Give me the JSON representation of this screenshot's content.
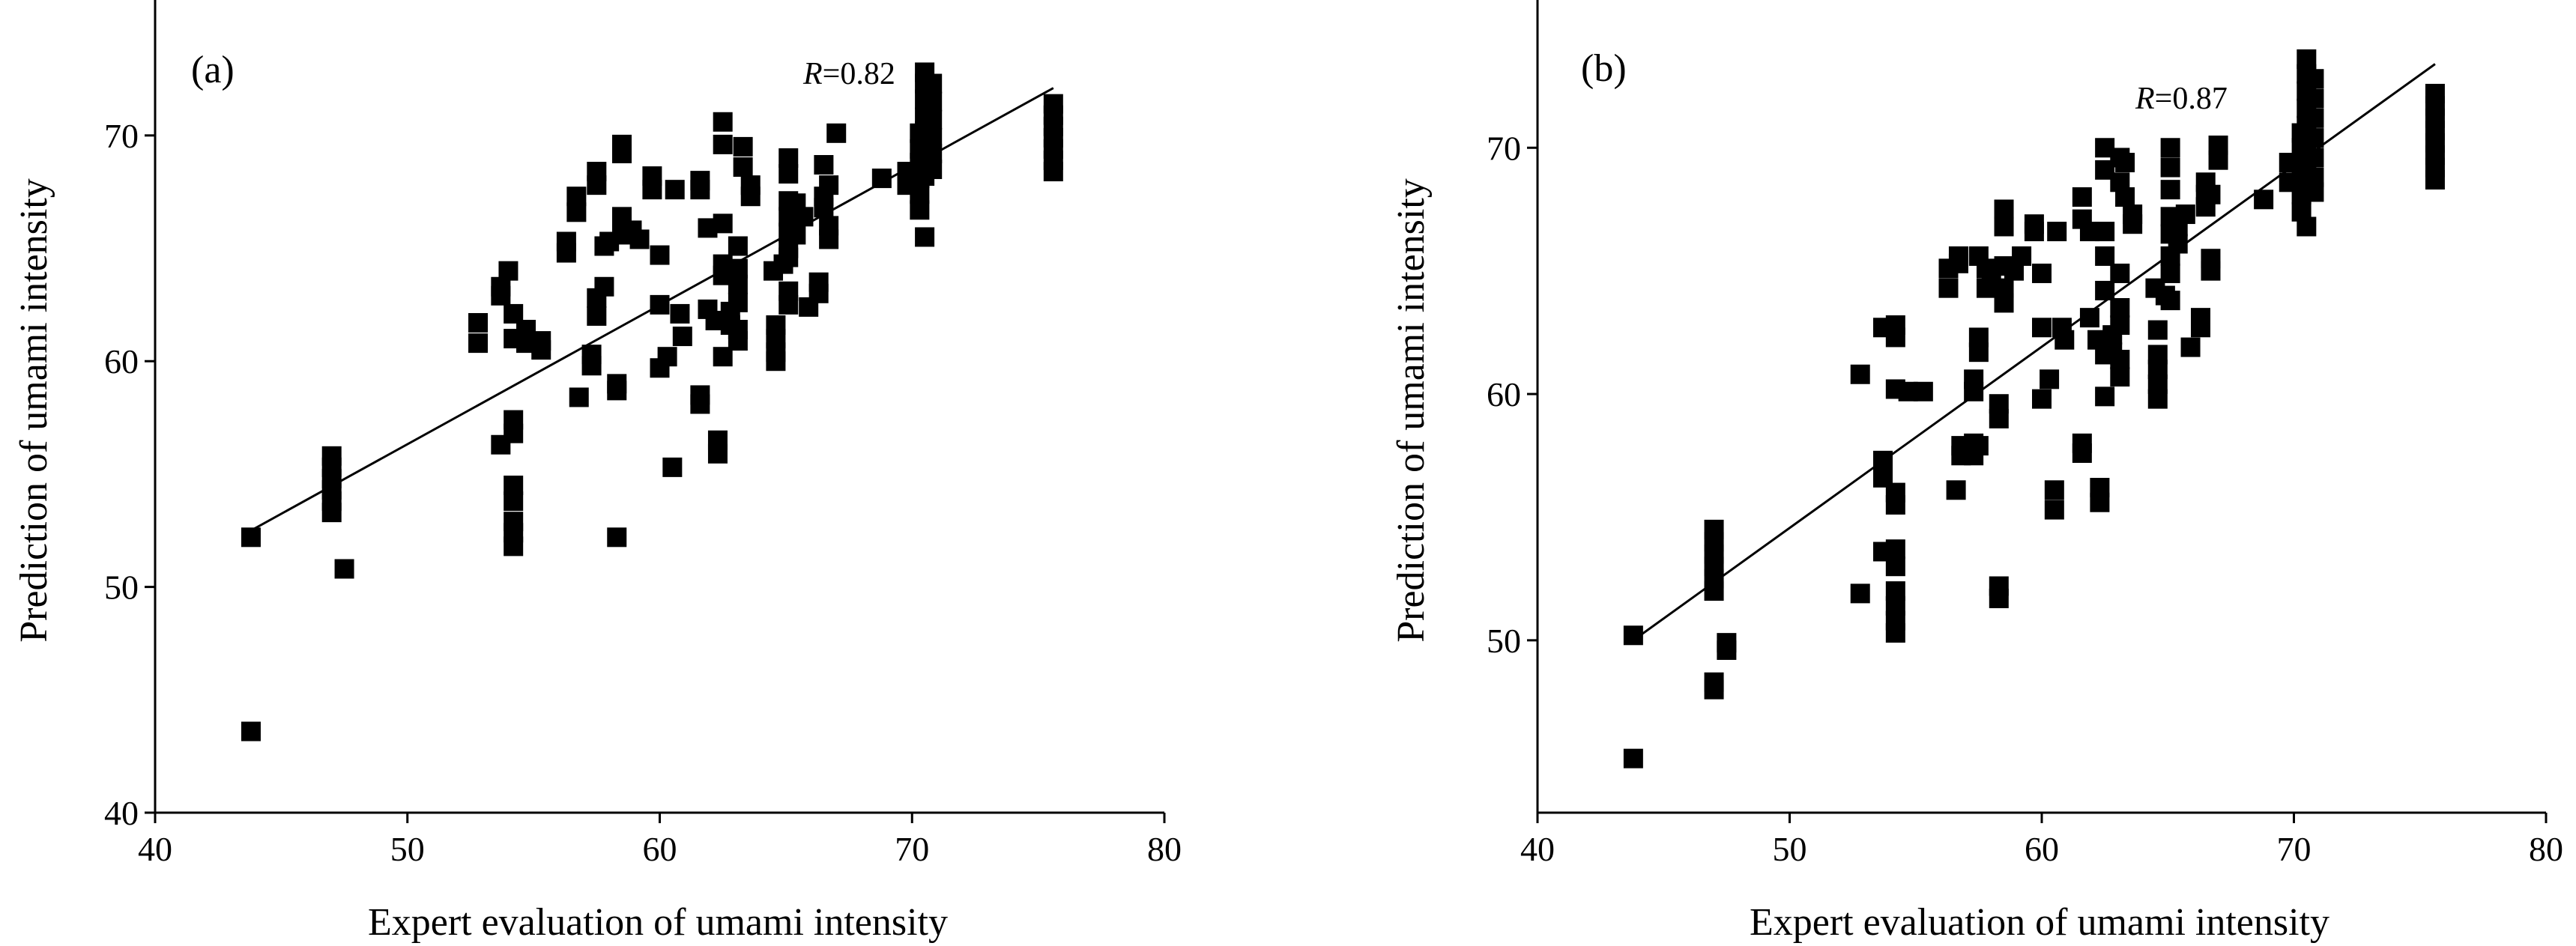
{
  "chart_data": [
    {
      "type": "scatter",
      "panel_label": "(a)",
      "annotation": {
        "italic": "R",
        "text": "=0.82"
      },
      "xlabel": "Expert evaluation of umami intensity",
      "ylabel": "Prediction of umami intensity",
      "xlim": [
        40,
        80
      ],
      "ylim": [
        40,
        76
      ],
      "xticks": [
        "40",
        "50",
        "60",
        "70",
        "80"
      ],
      "yticks": [
        "40",
        "50",
        "60",
        "70"
      ],
      "fit_line": {
        "x": [
          43.8,
          75.6
        ],
        "y": [
          52.5,
          72.1
        ]
      },
      "points": [
        [
          43.8,
          52.2
        ],
        [
          43.8,
          43.6
        ],
        [
          47.5,
          50.8
        ],
        [
          47.0,
          53.3
        ],
        [
          47.0,
          53.8
        ],
        [
          47.0,
          54.3
        ],
        [
          47.0,
          54.8
        ],
        [
          47.0,
          55.3
        ],
        [
          47.0,
          55.8
        ],
        [
          52.8,
          61.7
        ],
        [
          52.8,
          60.8
        ],
        [
          53.7,
          63.3
        ],
        [
          53.7,
          62.9
        ],
        [
          53.7,
          56.3
        ],
        [
          54.0,
          64.0
        ],
        [
          54.2,
          62.1
        ],
        [
          54.2,
          61.0
        ],
        [
          54.2,
          57.4
        ],
        [
          54.2,
          56.8
        ],
        [
          54.2,
          54.5
        ],
        [
          54.2,
          53.8
        ],
        [
          54.2,
          52.9
        ],
        [
          54.2,
          52.4
        ],
        [
          54.2,
          51.8
        ],
        [
          54.7,
          61.4
        ],
        [
          54.7,
          60.8
        ],
        [
          55.3,
          60.5
        ],
        [
          55.3,
          60.9
        ],
        [
          56.3,
          64.8
        ],
        [
          56.3,
          65.3
        ],
        [
          56.7,
          67.3
        ],
        [
          56.7,
          66.6
        ],
        [
          56.8,
          58.4
        ],
        [
          57.3,
          60.3
        ],
        [
          57.3,
          59.8
        ],
        [
          57.5,
          68.4
        ],
        [
          57.5,
          67.8
        ],
        [
          57.5,
          62.8
        ],
        [
          57.5,
          62.0
        ],
        [
          57.8,
          65.1
        ],
        [
          57.8,
          63.3
        ],
        [
          58.0,
          65.3
        ],
        [
          58.3,
          59.0
        ],
        [
          58.3,
          58.7
        ],
        [
          58.3,
          52.2
        ],
        [
          58.5,
          69.6
        ],
        [
          58.5,
          69.2
        ],
        [
          58.5,
          66.4
        ],
        [
          58.5,
          65.6
        ],
        [
          58.9,
          65.8
        ],
        [
          59.2,
          65.4
        ],
        [
          59.7,
          68.2
        ],
        [
          59.7,
          67.6
        ],
        [
          60.0,
          64.7
        ],
        [
          60.0,
          62.5
        ],
        [
          60.0,
          59.7
        ],
        [
          60.3,
          60.2
        ],
        [
          60.5,
          55.3
        ],
        [
          60.6,
          67.6
        ],
        [
          60.8,
          62.1
        ],
        [
          60.9,
          61.1
        ],
        [
          61.6,
          68.0
        ],
        [
          61.6,
          67.6
        ],
        [
          61.6,
          58.5
        ],
        [
          61.6,
          58.1
        ],
        [
          61.9,
          65.9
        ],
        [
          61.9,
          62.3
        ],
        [
          62.2,
          61.8
        ],
        [
          62.3,
          56.5
        ],
        [
          62.3,
          55.9
        ],
        [
          62.5,
          70.6
        ],
        [
          62.5,
          69.6
        ],
        [
          62.5,
          66.1
        ],
        [
          62.5,
          64.3
        ],
        [
          62.5,
          63.8
        ],
        [
          62.5,
          60.2
        ],
        [
          62.8,
          62.2
        ],
        [
          62.8,
          61.6
        ],
        [
          63.1,
          65.1
        ],
        [
          63.1,
          64.1
        ],
        [
          63.1,
          63.4
        ],
        [
          63.1,
          62.6
        ],
        [
          63.1,
          61.4
        ],
        [
          63.1,
          60.9
        ],
        [
          63.3,
          69.5
        ],
        [
          63.3,
          68.6
        ],
        [
          63.6,
          67.8
        ],
        [
          63.6,
          67.3
        ],
        [
          64.5,
          64.0
        ],
        [
          64.6,
          61.6
        ],
        [
          64.6,
          61.0
        ],
        [
          64.6,
          60.4
        ],
        [
          64.6,
          60.0
        ],
        [
          64.9,
          64.3
        ],
        [
          65.1,
          69.0
        ],
        [
          65.1,
          68.3
        ],
        [
          65.1,
          67.1
        ],
        [
          65.1,
          66.4
        ],
        [
          65.1,
          65.7
        ],
        [
          65.1,
          65.0
        ],
        [
          65.1,
          64.6
        ],
        [
          65.1,
          63.1
        ],
        [
          65.1,
          62.5
        ],
        [
          65.4,
          67.0
        ],
        [
          65.4,
          65.6
        ],
        [
          65.7,
          66.4
        ],
        [
          65.9,
          62.4
        ],
        [
          66.3,
          63.0
        ],
        [
          66.3,
          63.5
        ],
        [
          66.5,
          68.7
        ],
        [
          66.5,
          67.3
        ],
        [
          66.5,
          66.8
        ],
        [
          66.7,
          67.8
        ],
        [
          66.7,
          66.0
        ],
        [
          66.7,
          65.4
        ],
        [
          67.0,
          70.1
        ],
        [
          68.8,
          68.1
        ],
        [
          69.8,
          68.4
        ],
        [
          69.8,
          67.8
        ],
        [
          70.3,
          70.1
        ],
        [
          70.3,
          69.4
        ],
        [
          70.3,
          68.8
        ],
        [
          70.3,
          68.1
        ],
        [
          70.3,
          67.4
        ],
        [
          70.3,
          66.7
        ],
        [
          70.5,
          72.8
        ],
        [
          70.5,
          72.3
        ],
        [
          70.5,
          71.6
        ],
        [
          70.5,
          70.8
        ],
        [
          70.5,
          70.2
        ],
        [
          70.5,
          69.5
        ],
        [
          70.5,
          68.8
        ],
        [
          70.5,
          68.2
        ],
        [
          70.5,
          65.5
        ],
        [
          70.8,
          72.3
        ],
        [
          70.8,
          71.5
        ],
        [
          70.8,
          70.7
        ],
        [
          70.8,
          69.9
        ],
        [
          70.8,
          69.2
        ],
        [
          70.8,
          68.5
        ],
        [
          75.6,
          71.4
        ],
        [
          75.6,
          70.9
        ],
        [
          75.6,
          70.4
        ],
        [
          75.6,
          69.9
        ],
        [
          75.6,
          69.4
        ],
        [
          75.6,
          68.9
        ],
        [
          75.6,
          68.4
        ]
      ]
    },
    {
      "type": "scatter",
      "panel_label": "(b)",
      "annotation": {
        "italic": "R",
        "text": "=0.87"
      },
      "xlabel": "Expert evaluation of umami intensity",
      "ylabel": "Prediction of umami intensity",
      "xlim": [
        40,
        80
      ],
      "ylim": [
        43,
        76
      ],
      "xticks": [
        "40",
        "50",
        "60",
        "70",
        "80"
      ],
      "yticks": [
        "50",
        "60",
        "70"
      ],
      "fit_line": {
        "x": [
          43.8,
          75.6
        ],
        "y": [
          50.0,
          73.4
        ]
      },
      "points": [
        [
          43.8,
          50.2
        ],
        [
          43.8,
          45.2
        ],
        [
          47.0,
          54.5
        ],
        [
          47.0,
          54.0
        ],
        [
          47.0,
          53.5
        ],
        [
          47.0,
          53.0
        ],
        [
          47.0,
          52.5
        ],
        [
          47.0,
          52.0
        ],
        [
          47.0,
          48.3
        ],
        [
          47.0,
          48.0
        ],
        [
          47.5,
          49.6
        ],
        [
          47.5,
          49.9
        ],
        [
          52.8,
          60.8
        ],
        [
          52.8,
          51.9
        ],
        [
          53.7,
          62.7
        ],
        [
          53.7,
          57.3
        ],
        [
          53.7,
          56.6
        ],
        [
          53.7,
          53.6
        ],
        [
          54.2,
          62.8
        ],
        [
          54.2,
          62.3
        ],
        [
          54.2,
          60.2
        ],
        [
          54.2,
          56.0
        ],
        [
          54.2,
          55.5
        ],
        [
          54.2,
          53.7
        ],
        [
          54.2,
          53.0
        ],
        [
          54.2,
          52.0
        ],
        [
          54.2,
          51.4
        ],
        [
          54.2,
          50.8
        ],
        [
          54.2,
          50.3
        ],
        [
          54.7,
          60.1
        ],
        [
          55.3,
          60.1
        ],
        [
          56.3,
          64.3
        ],
        [
          56.3,
          65.1
        ],
        [
          56.6,
          56.1
        ],
        [
          56.7,
          65.6
        ],
        [
          56.7,
          65.3
        ],
        [
          56.8,
          57.9
        ],
        [
          56.8,
          57.5
        ],
        [
          57.3,
          60.6
        ],
        [
          57.3,
          60.1
        ],
        [
          57.3,
          58.0
        ],
        [
          57.3,
          57.5
        ],
        [
          57.5,
          65.6
        ],
        [
          57.5,
          62.3
        ],
        [
          57.5,
          61.7
        ],
        [
          57.5,
          57.9
        ],
        [
          57.8,
          65.1
        ],
        [
          57.8,
          64.3
        ],
        [
          58.0,
          64.7
        ],
        [
          58.3,
          59.6
        ],
        [
          58.3,
          59.0
        ],
        [
          58.3,
          52.2
        ],
        [
          58.3,
          51.7
        ],
        [
          58.5,
          67.5
        ],
        [
          58.5,
          66.8
        ],
        [
          58.5,
          65.2
        ],
        [
          58.5,
          64.3
        ],
        [
          58.5,
          63.7
        ],
        [
          58.9,
          65.0
        ],
        [
          59.2,
          65.6
        ],
        [
          59.7,
          66.9
        ],
        [
          59.7,
          66.6
        ],
        [
          60.0,
          64.9
        ],
        [
          60.0,
          62.7
        ],
        [
          60.0,
          59.8
        ],
        [
          60.3,
          60.6
        ],
        [
          60.5,
          56.1
        ],
        [
          60.5,
          55.3
        ],
        [
          60.6,
          66.6
        ],
        [
          60.8,
          62.7
        ],
        [
          60.9,
          62.2
        ],
        [
          61.6,
          68.0
        ],
        [
          61.6,
          67.1
        ],
        [
          61.6,
          58.0
        ],
        [
          61.6,
          57.6
        ],
        [
          61.9,
          66.6
        ],
        [
          61.9,
          63.1
        ],
        [
          62.2,
          62.2
        ],
        [
          62.3,
          56.2
        ],
        [
          62.3,
          55.6
        ],
        [
          62.5,
          70.0
        ],
        [
          62.5,
          69.1
        ],
        [
          62.5,
          66.6
        ],
        [
          62.5,
          65.6
        ],
        [
          62.5,
          64.2
        ],
        [
          62.5,
          61.6
        ],
        [
          62.5,
          59.9
        ],
        [
          62.8,
          62.4
        ],
        [
          62.8,
          61.7
        ],
        [
          63.1,
          69.6
        ],
        [
          63.1,
          68.6
        ],
        [
          63.1,
          64.9
        ],
        [
          63.1,
          63.5
        ],
        [
          63.1,
          62.8
        ],
        [
          63.1,
          61.4
        ],
        [
          63.1,
          60.7
        ],
        [
          63.3,
          69.4
        ],
        [
          63.3,
          68.0
        ],
        [
          63.6,
          66.9
        ],
        [
          63.6,
          67.3
        ],
        [
          64.5,
          64.3
        ],
        [
          64.6,
          62.6
        ],
        [
          64.6,
          61.6
        ],
        [
          64.6,
          61.0
        ],
        [
          64.6,
          60.4
        ],
        [
          64.6,
          59.8
        ],
        [
          64.9,
          64.0
        ],
        [
          65.1,
          70.0
        ],
        [
          65.1,
          69.2
        ],
        [
          65.1,
          68.3
        ],
        [
          65.1,
          67.2
        ],
        [
          65.1,
          66.5
        ],
        [
          65.1,
          65.6
        ],
        [
          65.1,
          64.9
        ],
        [
          65.1,
          63.8
        ],
        [
          65.4,
          66.8
        ],
        [
          65.4,
          66.1
        ],
        [
          65.7,
          67.3
        ],
        [
          65.9,
          61.9
        ],
        [
          66.3,
          62.7
        ],
        [
          66.3,
          63.1
        ],
        [
          66.5,
          68.6
        ],
        [
          66.5,
          68.1
        ],
        [
          66.5,
          67.6
        ],
        [
          66.7,
          68.1
        ],
        [
          66.7,
          65.5
        ],
        [
          66.7,
          65.0
        ],
        [
          67.0,
          70.1
        ],
        [
          67.0,
          69.5
        ],
        [
          68.8,
          67.9
        ],
        [
          69.8,
          69.4
        ],
        [
          69.8,
          68.6
        ],
        [
          70.3,
          70.6
        ],
        [
          70.3,
          70.0
        ],
        [
          70.3,
          69.4
        ],
        [
          70.3,
          68.8
        ],
        [
          70.3,
          68.1
        ],
        [
          70.3,
          67.4
        ],
        [
          70.5,
          73.6
        ],
        [
          70.5,
          73.0
        ],
        [
          70.5,
          72.3
        ],
        [
          70.5,
          71.6
        ],
        [
          70.5,
          70.9
        ],
        [
          70.5,
          70.2
        ],
        [
          70.5,
          69.5
        ],
        [
          70.5,
          68.8
        ],
        [
          70.5,
          66.8
        ],
        [
          70.8,
          72.8
        ],
        [
          70.8,
          72.0
        ],
        [
          70.8,
          71.2
        ],
        [
          70.8,
          70.4
        ],
        [
          70.8,
          69.6
        ],
        [
          70.8,
          68.8
        ],
        [
          70.8,
          68.2
        ],
        [
          75.6,
          72.2
        ],
        [
          75.6,
          71.7
        ],
        [
          75.6,
          71.2
        ],
        [
          75.6,
          70.7
        ],
        [
          75.6,
          70.2
        ],
        [
          75.6,
          69.7
        ],
        [
          75.6,
          69.2
        ],
        [
          75.6,
          68.7
        ]
      ]
    }
  ]
}
